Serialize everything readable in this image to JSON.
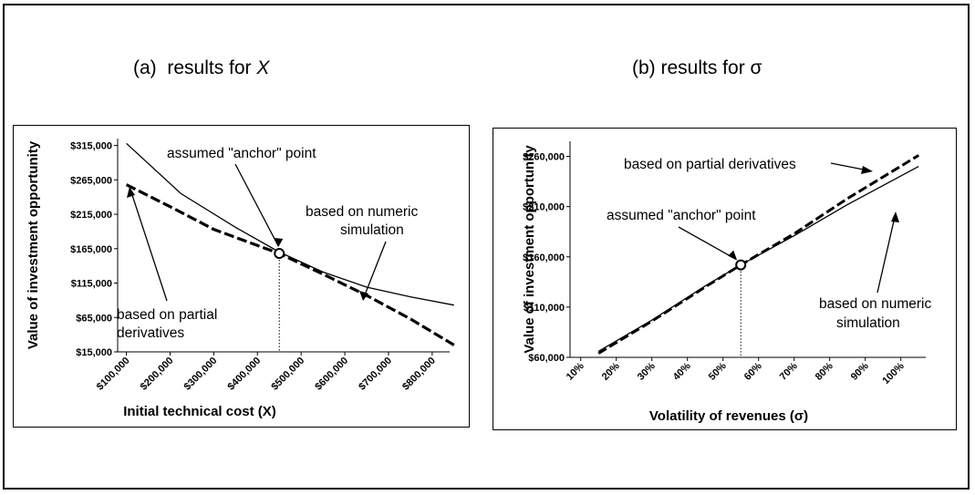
{
  "panels": {
    "a": {
      "prefix": "(a)",
      "text": "results for",
      "var": "X"
    },
    "b": {
      "title": "(b) results for σ"
    }
  },
  "chart_data": [
    {
      "type": "line",
      "xlabel": "Initial technical cost (X)",
      "ylabel": "Value of investment opportunity",
      "x_ticks": [
        "$100,000",
        "$200,000",
        "$300,000",
        "$400,000",
        "$500,000",
        "$600,000",
        "$700,000",
        "$800,000"
      ],
      "y_ticks": [
        "$15,000",
        "$65,000",
        "$115,000",
        "$165,000",
        "$215,000",
        "$265,000",
        "$315,000"
      ],
      "xlim": [
        80000,
        840000
      ],
      "ylim": [
        15000,
        325000
      ],
      "series": [
        {
          "name": "based on numeric simulation",
          "style": "solid",
          "x": [
            100000,
            225000,
            350000,
            450000,
            550000,
            650000,
            750000,
            850000
          ],
          "y": [
            318000,
            245000,
            196000,
            160000,
            131000,
            109000,
            95000,
            83000
          ]
        },
        {
          "name": "based on partial derivatives",
          "style": "dashed",
          "x": [
            100000,
            200000,
            300000,
            450000,
            550000,
            650000,
            750000,
            850000
          ],
          "y": [
            258000,
            226000,
            193000,
            158000,
            128000,
            97000,
            63000,
            25000
          ]
        }
      ],
      "anchor": {
        "x": 450000,
        "y": 158000,
        "label": "assumed \"anchor\" point"
      },
      "annotations": {
        "numeric": [
          "based on numeric",
          "simulation"
        ],
        "partial": [
          "based on partial",
          "derivatives"
        ]
      },
      "grid": false
    },
    {
      "type": "line",
      "xlabel": "Volatility of revenues (σ)",
      "ylabel": "Value of investment opportunity",
      "x_ticks": [
        "10%",
        "20%",
        "30%",
        "40%",
        "50%",
        "60%",
        "70%",
        "80%",
        "90%",
        "100%"
      ],
      "x_values": [
        10,
        20,
        30,
        40,
        50,
        60,
        70,
        80,
        90,
        100
      ],
      "y_ticks": [
        "$60,000",
        "$110,000",
        "$160,000",
        "$210,000",
        "$260,000"
      ],
      "xlim": [
        7,
        107
      ],
      "ylim": [
        60000,
        275000
      ],
      "series": [
        {
          "name": "based on numeric simulation",
          "style": "solid",
          "x": [
            15,
            30,
            45,
            55,
            70,
            85,
            105
          ],
          "y": [
            66000,
            97000,
            131000,
            152000,
            181000,
            212000,
            250000
          ]
        },
        {
          "name": "based on partial derivatives",
          "style": "dashed",
          "x": [
            15,
            30,
            45,
            55,
            70,
            85,
            105
          ],
          "y": [
            64000,
            96000,
            130000,
            152000,
            183000,
            218000,
            261000
          ]
        }
      ],
      "anchor": {
        "x": 55,
        "y": 152000,
        "label": "assumed \"anchor\" point"
      },
      "annotations": {
        "partial": [
          "based on partial derivatives"
        ],
        "numeric": [
          "based on numeric",
          "simulation"
        ]
      },
      "grid": false
    }
  ]
}
